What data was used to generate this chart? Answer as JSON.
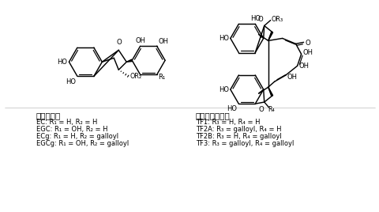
{
  "bg_color": "#ffffff",
  "left_label_title": "カテキン類",
  "left_lines": [
    "EC: R₁ = H, R₂ = H",
    "EGC: R₁ = OH, R₂ = H",
    "ECg: R₁ = H, R₂ = galloyl",
    "EGCg: R₁ = OH, R₂ = galloyl"
  ],
  "right_label_title": "テアフラビン類",
  "right_lines": [
    "TF1: R₃ = H, R₄ = H",
    "TF2A: R₃ = galloyl, R₄ = H",
    "TF2B: R₃ = H, R₄ = galloyl",
    "TF3: R₃ = galloyl, R₄ = galloyl"
  ]
}
